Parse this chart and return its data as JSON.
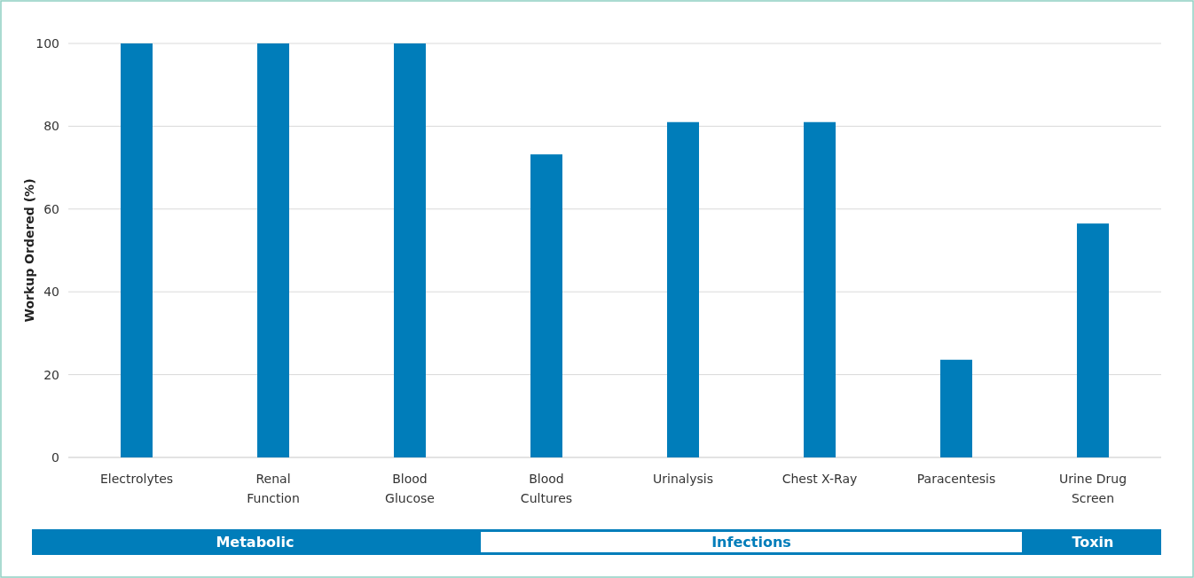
{
  "chart_data": {
    "type": "bar",
    "ylabel": "Workup Ordered (%)",
    "categories": [
      "Electrolytes",
      "Renal Function",
      "Blood Glucose",
      "Blood Cultures",
      "Urinalysis",
      "Chest X-Ray",
      "Paracentesis",
      "Urine Drug Screen"
    ],
    "values": [
      100,
      100,
      100,
      73.2,
      81,
      81,
      23.6,
      56.5
    ],
    "color": "#007dba",
    "ylim": [
      0,
      100
    ],
    "yticks": [
      0,
      20,
      40,
      60,
      80,
      100
    ],
    "grid": "y",
    "annotations": [
      "Metabolic",
      "Infections",
      "Toxin"
    ]
  }
}
